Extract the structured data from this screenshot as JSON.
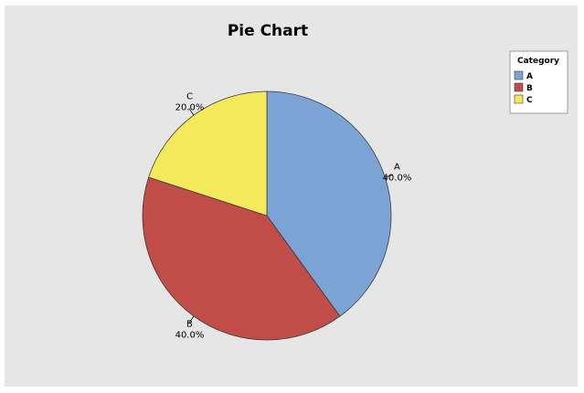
{
  "chart_data": {
    "type": "pie",
    "title": "Pie Chart",
    "categories": [
      "A",
      "B",
      "C"
    ],
    "values": [
      40.0,
      40.0,
      20.0
    ],
    "value_labels": [
      "40.0%",
      "40.0%",
      "20.0%"
    ],
    "colors": [
      "#7ba3d4",
      "#c04d48",
      "#f4e85b"
    ],
    "start_angle": "12 o'clock",
    "direction": "clockwise",
    "legend": {
      "title": "Category",
      "placement": "top-right",
      "entries": [
        "A",
        "B",
        "C"
      ]
    }
  }
}
